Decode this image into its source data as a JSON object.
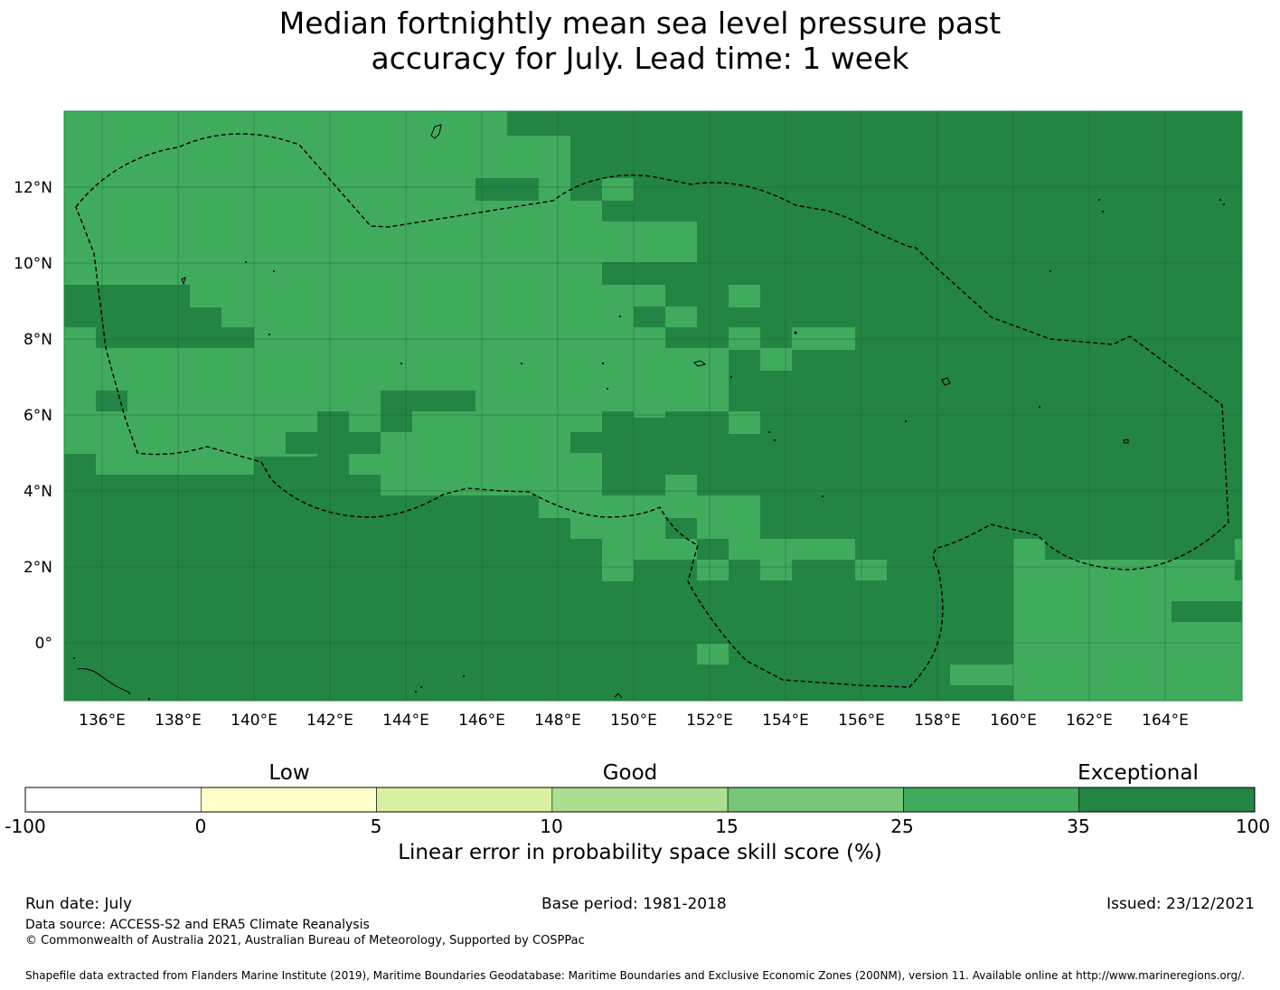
{
  "title_line1": "Median fortnightly mean sea level pressure past",
  "title_line2": "accuracy for July. Lead time: 1 week",
  "map": {
    "lon_labels": [
      "136°E",
      "138°E",
      "140°E",
      "142°E",
      "144°E",
      "146°E",
      "148°E",
      "150°E",
      "152°E",
      "154°E",
      "156°E",
      "158°E",
      "160°E",
      "162°E",
      "164°E"
    ],
    "lat_labels": [
      "12°N",
      "10°N",
      "8°N",
      "6°N",
      "4°N",
      "2°N",
      "0°"
    ],
    "lon_values": [
      136,
      138,
      140,
      142,
      144,
      146,
      148,
      150,
      152,
      154,
      156,
      158,
      160,
      162,
      164
    ],
    "lat_values": [
      12,
      10,
      8,
      6,
      4,
      2,
      0
    ],
    "lon_range": [
      135,
      166
    ],
    "lat_range": [
      -1.5,
      14
    ],
    "grid": true,
    "colors": {
      "good_high": "#41AB5D",
      "exceptional": "#238443",
      "land_outline": "#000000",
      "eez": "#000000"
    }
  },
  "colorbar": {
    "category_labels": [
      "Low",
      "Good",
      "Exceptional"
    ],
    "ticks": [
      "-100",
      "0",
      "5",
      "10",
      "15",
      "25",
      "35",
      "100"
    ],
    "colors": [
      "#ffffff",
      "#ffffcc",
      "#d9f0a3",
      "#addd8e",
      "#78c679",
      "#41ab5d",
      "#238443"
    ],
    "label": "Linear error in probability space skill score (%)"
  },
  "footer": {
    "run_date": "Run date: July",
    "base_period": "Base period: 1981-2018",
    "issued": "Issued: 23/12/2021",
    "data_source": "Data source: ACCESS-S2 and ERA5 Climate Reanalysis",
    "copyright": "© Commonwealth of Australia 2021, Australian Bureau of Meteorology, Supported by COSPPac",
    "shapefile": "Shapefile data extracted from Flanders Marine Institute (2019), Maritime Boundaries Geodatabase: Maritime Boundaries and Exclusive Economic Zones (200NM), version 11. Available online at http://www.marineregions.org/."
  }
}
